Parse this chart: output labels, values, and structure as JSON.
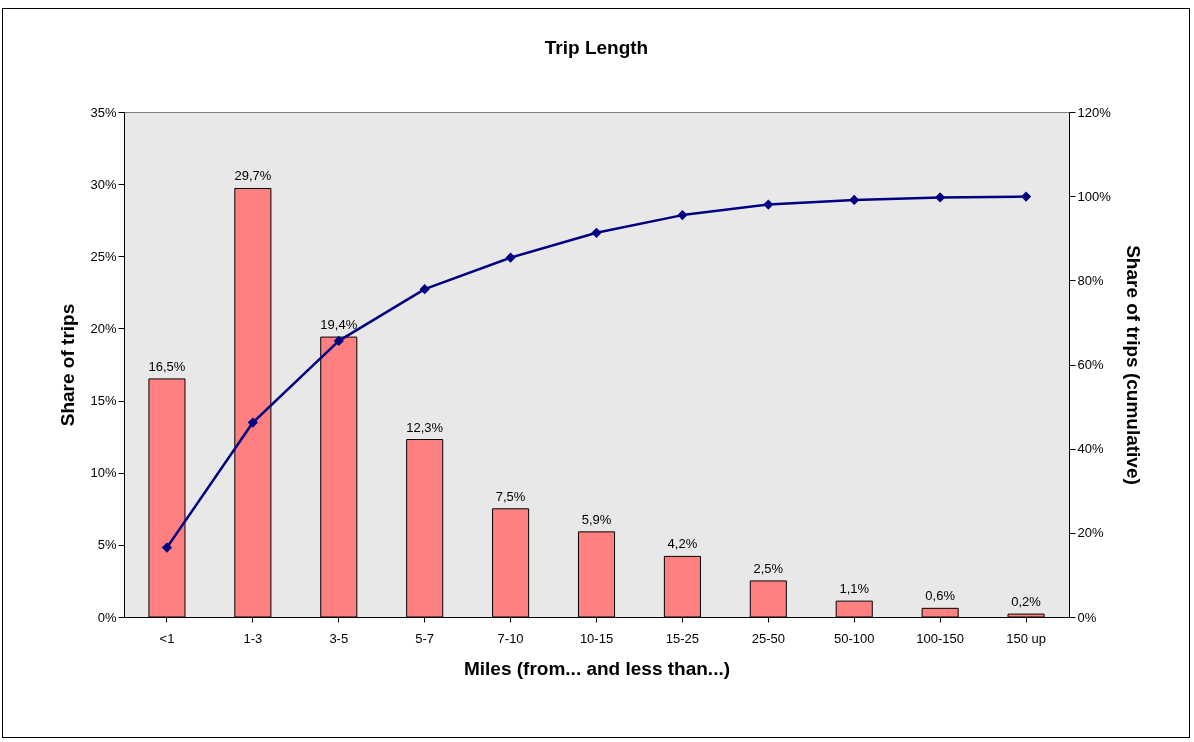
{
  "chart_data": {
    "type": "bar",
    "title": "Trip Length",
    "xlabel": "Miles (from... and less than...)",
    "ylabel": "Share of trips",
    "y2label": "Share of trips (cumulative)",
    "categories": [
      "<1",
      "1-3",
      "3-5",
      "5-7",
      "7-10",
      "10-15",
      "15-25",
      "25-50",
      "50-100",
      "100-150",
      "150 up"
    ],
    "series": [
      {
        "color": "#ff8080",
        "values": [
          16.5,
          29.7,
          19.4,
          12.3,
          7.5,
          5.9,
          4.2,
          2.5,
          1.1,
          0.6,
          0.2
        ],
        "value_labels": [
          "16,5%",
          "29,7%",
          "19,4%",
          "12,3%",
          "7,5%",
          "5,9%",
          "4,2%",
          "2,5%",
          "1,1%",
          "0,6%",
          "0,2%"
        ]
      },
      {
        "type": "line",
        "axis": "y2",
        "color": "#000080",
        "values": [
          16.5,
          46.2,
          65.6,
          77.9,
          85.4,
          91.3,
          95.5,
          98.0,
          99.1,
          99.7,
          99.9
        ]
      }
    ],
    "ylim": [
      0,
      35
    ],
    "yticks": [
      {
        "value": 0,
        "label": "0%"
      },
      {
        "value": 5,
        "label": "5%"
      },
      {
        "value": 10,
        "label": "10%"
      },
      {
        "value": 15,
        "label": "15%"
      },
      {
        "value": 20,
        "label": "20%"
      },
      {
        "value": 25,
        "label": "25%"
      },
      {
        "value": 30,
        "label": "30%"
      },
      {
        "value": 35,
        "label": "35%"
      }
    ],
    "y2lim": [
      0,
      120
    ],
    "y2ticks": [
      {
        "value": 0,
        "label": "0%"
      },
      {
        "value": 20,
        "label": "20%"
      },
      {
        "value": 40,
        "label": "40%"
      },
      {
        "value": 60,
        "label": "60%"
      },
      {
        "value": 80,
        "label": "80%"
      },
      {
        "value": 100,
        "label": "100%"
      },
      {
        "value": 120,
        "label": "120%"
      }
    ],
    "marker": "diamond",
    "line_style": "solid",
    "grid": false
  }
}
